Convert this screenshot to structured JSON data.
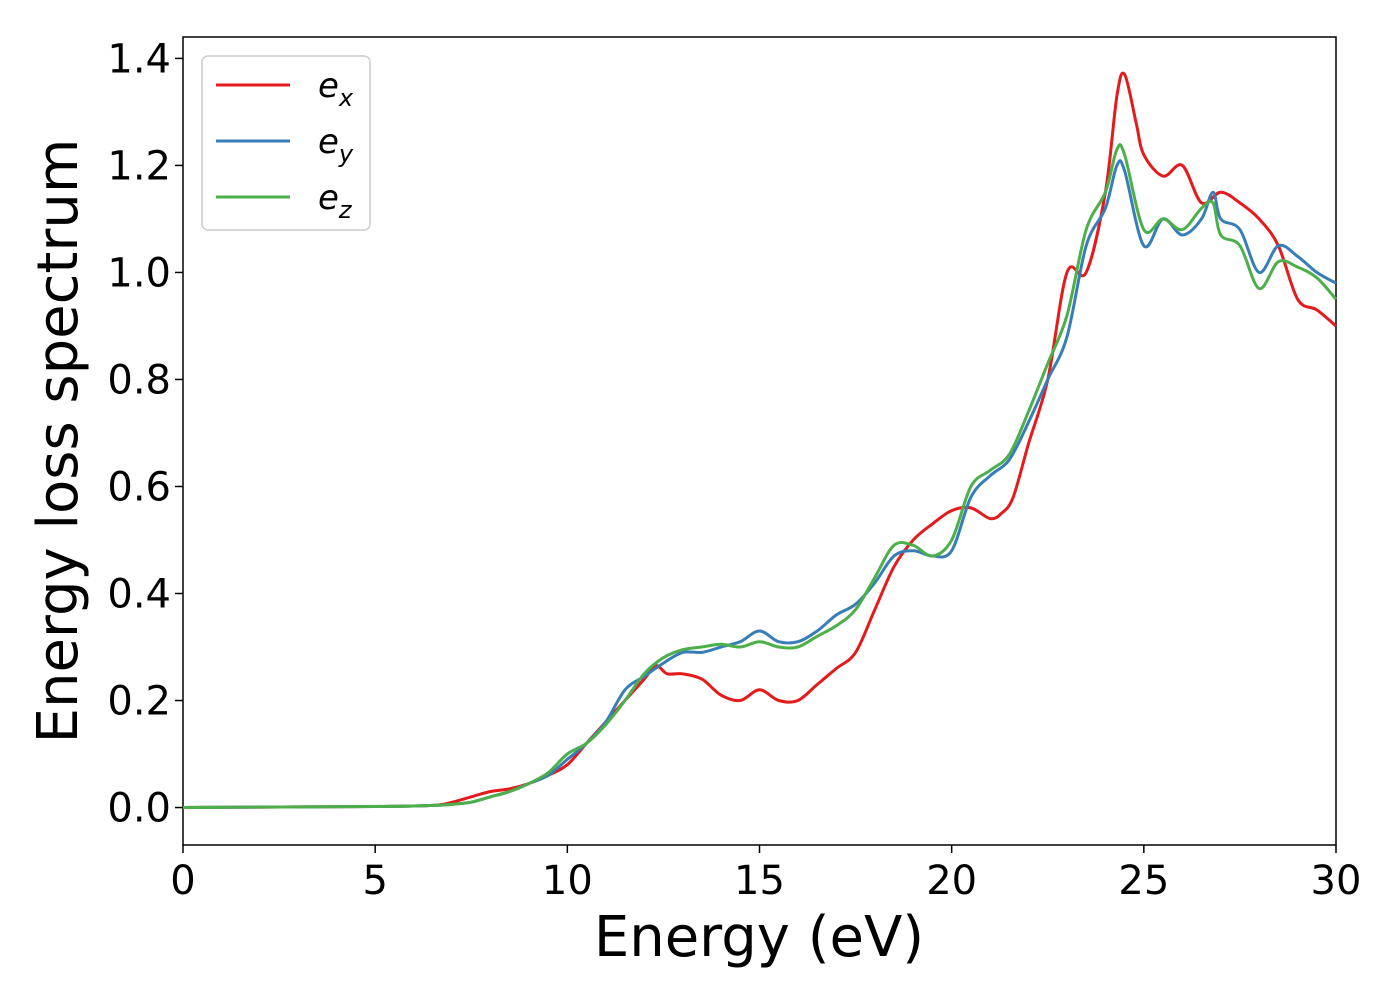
{
  "chart_data": {
    "type": "line",
    "title": "",
    "xlabel": "Energy (eV)",
    "ylabel": "Energy loss spectrum",
    "xlim": [
      0,
      30
    ],
    "ylim": [
      -0.07,
      1.44
    ],
    "xticks": [
      "0",
      "5",
      "10",
      "15",
      "20",
      "25",
      "30"
    ],
    "yticks": [
      "0.0",
      "0.2",
      "0.4",
      "0.6",
      "0.8",
      "1.0",
      "1.2",
      "1.4"
    ],
    "grid": false,
    "legend_position": "top-left",
    "series": [
      {
        "name": "e_x",
        "label_main": "e",
        "label_sub": "x",
        "color": "#e41a1c",
        "x": [
          0,
          5,
          6.5,
          7,
          7.5,
          8,
          8.5,
          9,
          9.5,
          10,
          10.5,
          11,
          11.5,
          12,
          12.3,
          12.6,
          13,
          13.5,
          14,
          14.5,
          15,
          15.5,
          16,
          16.5,
          17,
          17.5,
          18,
          18.5,
          19,
          19.5,
          20,
          20.5,
          21,
          21.3,
          21.6,
          22,
          22.5,
          23,
          23.5,
          24,
          24.3,
          24.5,
          24.8,
          25,
          25.5,
          26,
          26.5,
          27,
          27.5,
          28,
          28.5,
          29,
          29.5,
          30
        ],
        "y": [
          0,
          0.002,
          0.004,
          0.01,
          0.02,
          0.03,
          0.035,
          0.045,
          0.06,
          0.08,
          0.12,
          0.16,
          0.2,
          0.24,
          0.265,
          0.25,
          0.25,
          0.24,
          0.21,
          0.2,
          0.22,
          0.2,
          0.2,
          0.23,
          0.26,
          0.29,
          0.37,
          0.45,
          0.5,
          0.53,
          0.555,
          0.56,
          0.54,
          0.55,
          0.58,
          0.68,
          0.8,
          1.0,
          1.0,
          1.15,
          1.33,
          1.37,
          1.28,
          1.22,
          1.18,
          1.2,
          1.13,
          1.15,
          1.13,
          1.1,
          1.05,
          0.95,
          0.93,
          0.9
        ]
      },
      {
        "name": "e_y",
        "label_main": "e",
        "label_sub": "y",
        "color": "#377eb8",
        "x": [
          0,
          5,
          6.5,
          7,
          7.5,
          8,
          8.5,
          9,
          9.5,
          10,
          10.5,
          11,
          11.5,
          12,
          12.5,
          13,
          13.5,
          14,
          14.5,
          15,
          15.5,
          16,
          16.5,
          17,
          17.5,
          18,
          18.5,
          19,
          19.5,
          20,
          20.5,
          21,
          21.5,
          22,
          22.5,
          23,
          23.5,
          24,
          24.3,
          24.5,
          25,
          25.5,
          26,
          26.5,
          26.8,
          27,
          27.5,
          28,
          28.5,
          29,
          29.5,
          30
        ],
        "y": [
          0,
          0.002,
          0.004,
          0.006,
          0.01,
          0.02,
          0.03,
          0.045,
          0.06,
          0.09,
          0.12,
          0.16,
          0.22,
          0.245,
          0.27,
          0.29,
          0.29,
          0.3,
          0.31,
          0.33,
          0.31,
          0.31,
          0.33,
          0.36,
          0.38,
          0.42,
          0.47,
          0.48,
          0.47,
          0.48,
          0.58,
          0.62,
          0.65,
          0.72,
          0.8,
          0.88,
          1.05,
          1.12,
          1.2,
          1.19,
          1.05,
          1.1,
          1.07,
          1.1,
          1.15,
          1.1,
          1.08,
          1.0,
          1.05,
          1.03,
          1.0,
          0.98
        ]
      },
      {
        "name": "e_z",
        "label_main": "e",
        "label_sub": "z",
        "color": "#4daf4a",
        "x": [
          0,
          5,
          6.5,
          7,
          7.5,
          8,
          8.5,
          9,
          9.5,
          10,
          10.5,
          11,
          11.5,
          12,
          12.5,
          13,
          13.5,
          14,
          14.5,
          15,
          15.5,
          16,
          16.5,
          17,
          17.5,
          18,
          18.5,
          19,
          19.5,
          20,
          20.5,
          21,
          21.5,
          22,
          22.5,
          23,
          23.5,
          24,
          24.3,
          24.5,
          25,
          25.5,
          26,
          26.5,
          26.8,
          27,
          27.5,
          28,
          28.5,
          29,
          29.5,
          30
        ],
        "y": [
          0,
          0.002,
          0.004,
          0.006,
          0.01,
          0.02,
          0.03,
          0.045,
          0.065,
          0.1,
          0.12,
          0.155,
          0.2,
          0.25,
          0.28,
          0.295,
          0.3,
          0.305,
          0.3,
          0.31,
          0.3,
          0.3,
          0.32,
          0.34,
          0.37,
          0.43,
          0.49,
          0.49,
          0.47,
          0.5,
          0.6,
          0.63,
          0.66,
          0.74,
          0.83,
          0.92,
          1.08,
          1.15,
          1.23,
          1.22,
          1.08,
          1.1,
          1.08,
          1.12,
          1.13,
          1.07,
          1.05,
          0.97,
          1.02,
          1.01,
          0.99,
          0.95
        ]
      }
    ]
  }
}
